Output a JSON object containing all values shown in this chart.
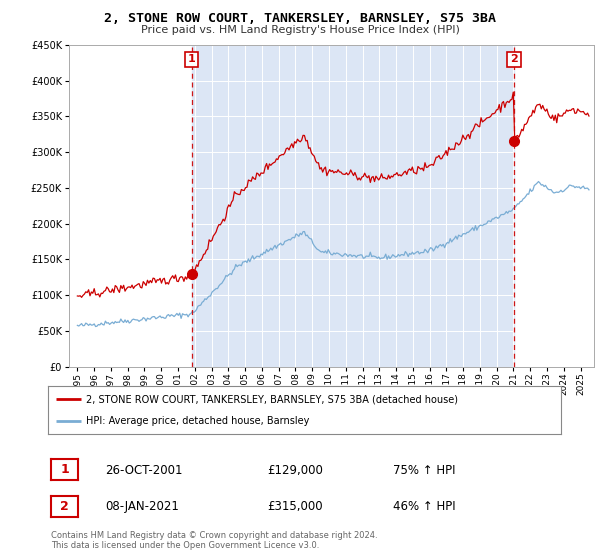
{
  "title": "2, STONE ROW COURT, TANKERSLEY, BARNSLEY, S75 3BA",
  "subtitle": "Price paid vs. HM Land Registry's House Price Index (HPI)",
  "red_label": "2, STONE ROW COURT, TANKERSLEY, BARNSLEY, S75 3BA (detached house)",
  "blue_label": "HPI: Average price, detached house, Barnsley",
  "sale1_date": "26-OCT-2001",
  "sale1_price": 129000,
  "sale1_hpi": "75%",
  "sale2_date": "08-JAN-2021",
  "sale2_price": 315000,
  "sale2_hpi": "46%",
  "footer": "Contains HM Land Registry data © Crown copyright and database right 2024.\nThis data is licensed under the Open Government Licence v3.0.",
  "bg_color": "#ffffff",
  "plot_bg_color": "#dce6f5",
  "plot_bg_outside": "#ffffff",
  "red_line_color": "#cc0000",
  "blue_line_color": "#7aadd4",
  "dashed_line_color": "#cc0000",
  "grid_color": "#ffffff",
  "ylim": [
    0,
    450000
  ],
  "yticks": [
    0,
    50000,
    100000,
    150000,
    200000,
    250000,
    300000,
    350000,
    400000,
    450000
  ],
  "sale1_x": 2001.82,
  "sale2_x": 2021.03,
  "xmin": 1994.5,
  "xmax": 2025.8
}
